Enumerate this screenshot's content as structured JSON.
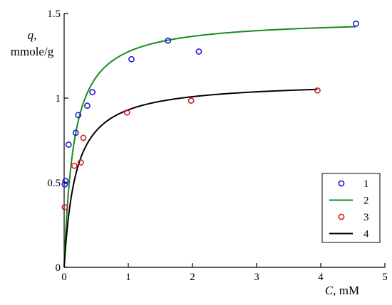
{
  "chart_data": {
    "type": "scatter",
    "title": "",
    "xlabel_var": "C",
    "xlabel_unit": ", mM",
    "ylabel_var": "q",
    "ylabel_comma": ",",
    "ylabel_unit": "mmole/g",
    "xlim": [
      0,
      5
    ],
    "ylim": [
      0,
      1.5
    ],
    "grid": false,
    "legend_position": "bottom-right",
    "x_ticks": [
      0,
      1,
      2,
      3,
      4,
      5
    ],
    "x_tick_labels": [
      "0",
      "1",
      "2",
      "3",
      "4",
      "5"
    ],
    "y_ticks": [
      0,
      0.5,
      1,
      1.5
    ],
    "y_tick_labels": [
      "0",
      "0.5",
      "1",
      "1.5"
    ],
    "series": [
      {
        "name": "1",
        "kind": "markers",
        "color": "#1f1fd6",
        "points": [
          [
            0.01,
            0.49
          ],
          [
            0.02,
            0.51
          ],
          [
            0.07,
            0.725
          ],
          [
            0.18,
            0.795
          ],
          [
            0.22,
            0.9
          ],
          [
            0.36,
            0.955
          ],
          [
            0.44,
            1.035
          ],
          [
            1.05,
            1.23
          ],
          [
            1.62,
            1.34
          ],
          [
            2.1,
            1.275
          ],
          [
            4.55,
            1.44
          ]
        ]
      },
      {
        "name": "2",
        "kind": "line",
        "color": "#1a8a1a",
        "model": {
          "qmax": 1.47,
          "K": 6.5
        },
        "x_range": [
          0,
          4.55
        ]
      },
      {
        "name": "3",
        "kind": "markers",
        "color": "#d62020",
        "points": [
          [
            0.01,
            0.355
          ],
          [
            0.16,
            0.6
          ],
          [
            0.26,
            0.62
          ],
          [
            0.3,
            0.765
          ],
          [
            0.98,
            0.915
          ],
          [
            1.98,
            0.985
          ],
          [
            3.95,
            1.045
          ]
        ]
      },
      {
        "name": "4",
        "kind": "line",
        "color": "#000000",
        "model": {
          "qmax": 1.1,
          "K": 5.5
        },
        "x_range": [
          0,
          3.95
        ]
      }
    ]
  }
}
